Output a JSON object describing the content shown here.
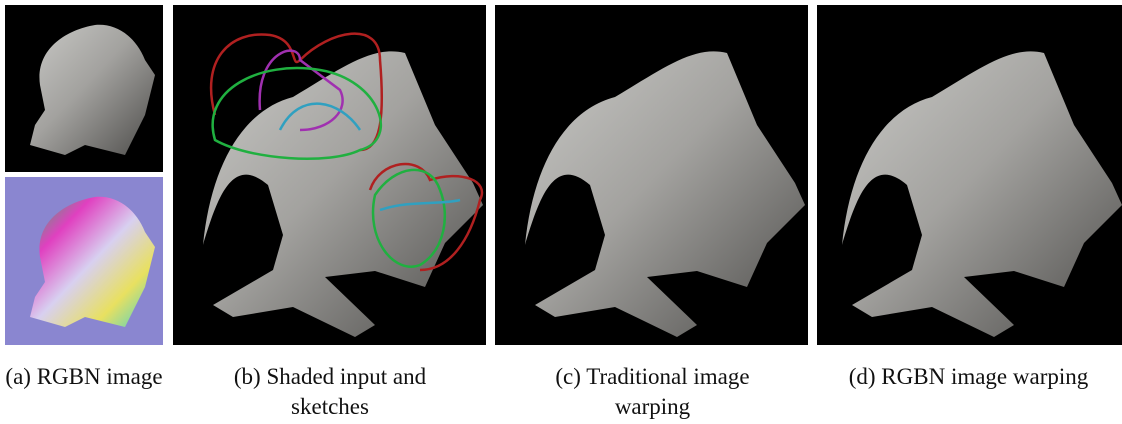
{
  "figure": {
    "captions": [
      {
        "label": "(a)",
        "text": "RGBN image"
      },
      {
        "label": "(b)",
        "text": "Shaded input and sketches"
      },
      {
        "label": "(c)",
        "text": "Traditional image warping"
      },
      {
        "label": "(d)",
        "text": "RGBN image warping"
      }
    ]
  }
}
